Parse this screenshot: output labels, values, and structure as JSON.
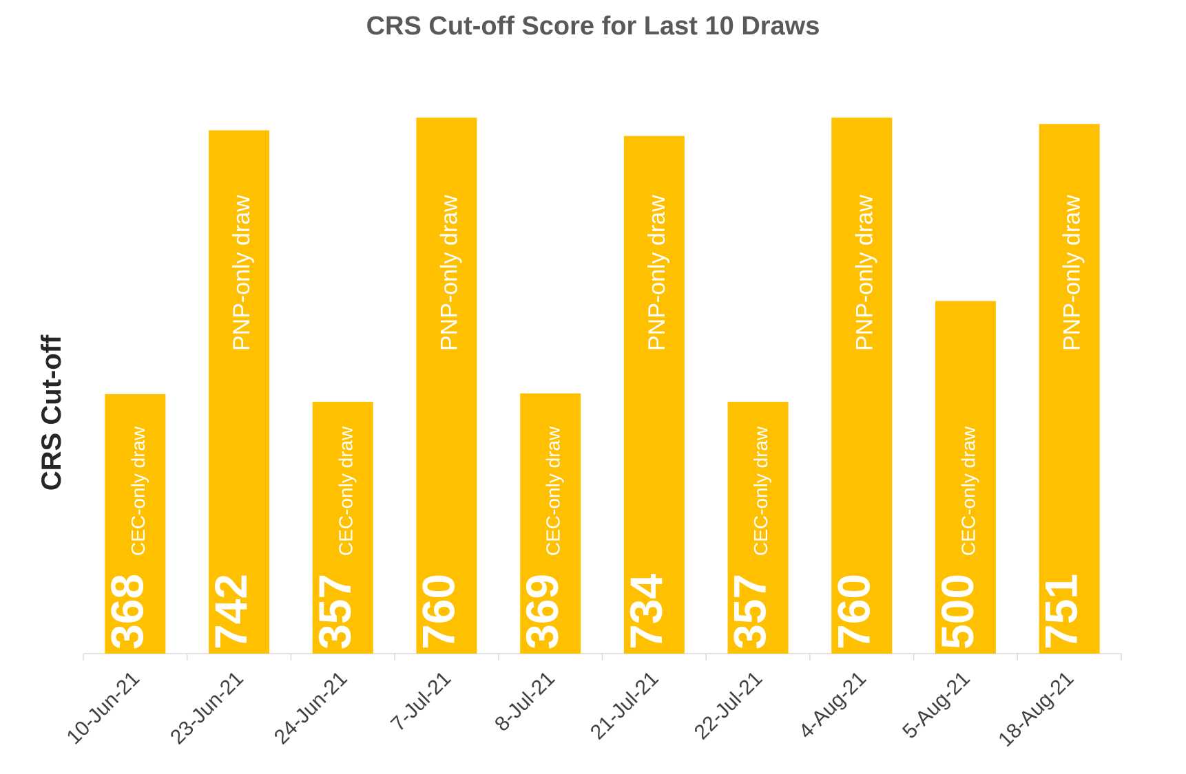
{
  "chart_data": {
    "type": "bar",
    "title": "CRS Cut-off Score for Last 10 Draws",
    "xlabel": "",
    "ylabel": "CRS Cut-off",
    "ylim": [
      0,
      800
    ],
    "grid": false,
    "legend": "none",
    "bar_color": "#FFC000",
    "categories": [
      "10-Jun-21",
      "23-Jun-21",
      "24-Jun-21",
      "7-Jul-21",
      "8-Jul-21",
      "21-Jul-21",
      "22-Jul-21",
      "4-Aug-21",
      "5-Aug-21",
      "18-Aug-21"
    ],
    "values": [
      368,
      742,
      357,
      760,
      369,
      734,
      357,
      760,
      500,
      751
    ],
    "bar_notes": [
      "CEC-only draw",
      "PNP-only draw",
      "CEC-only draw",
      "PNP-only draw",
      "CEC-only draw",
      "PNP-only draw",
      "CEC-only draw",
      "PNP-only draw",
      "CEC-only draw",
      "PNP-only draw"
    ]
  }
}
